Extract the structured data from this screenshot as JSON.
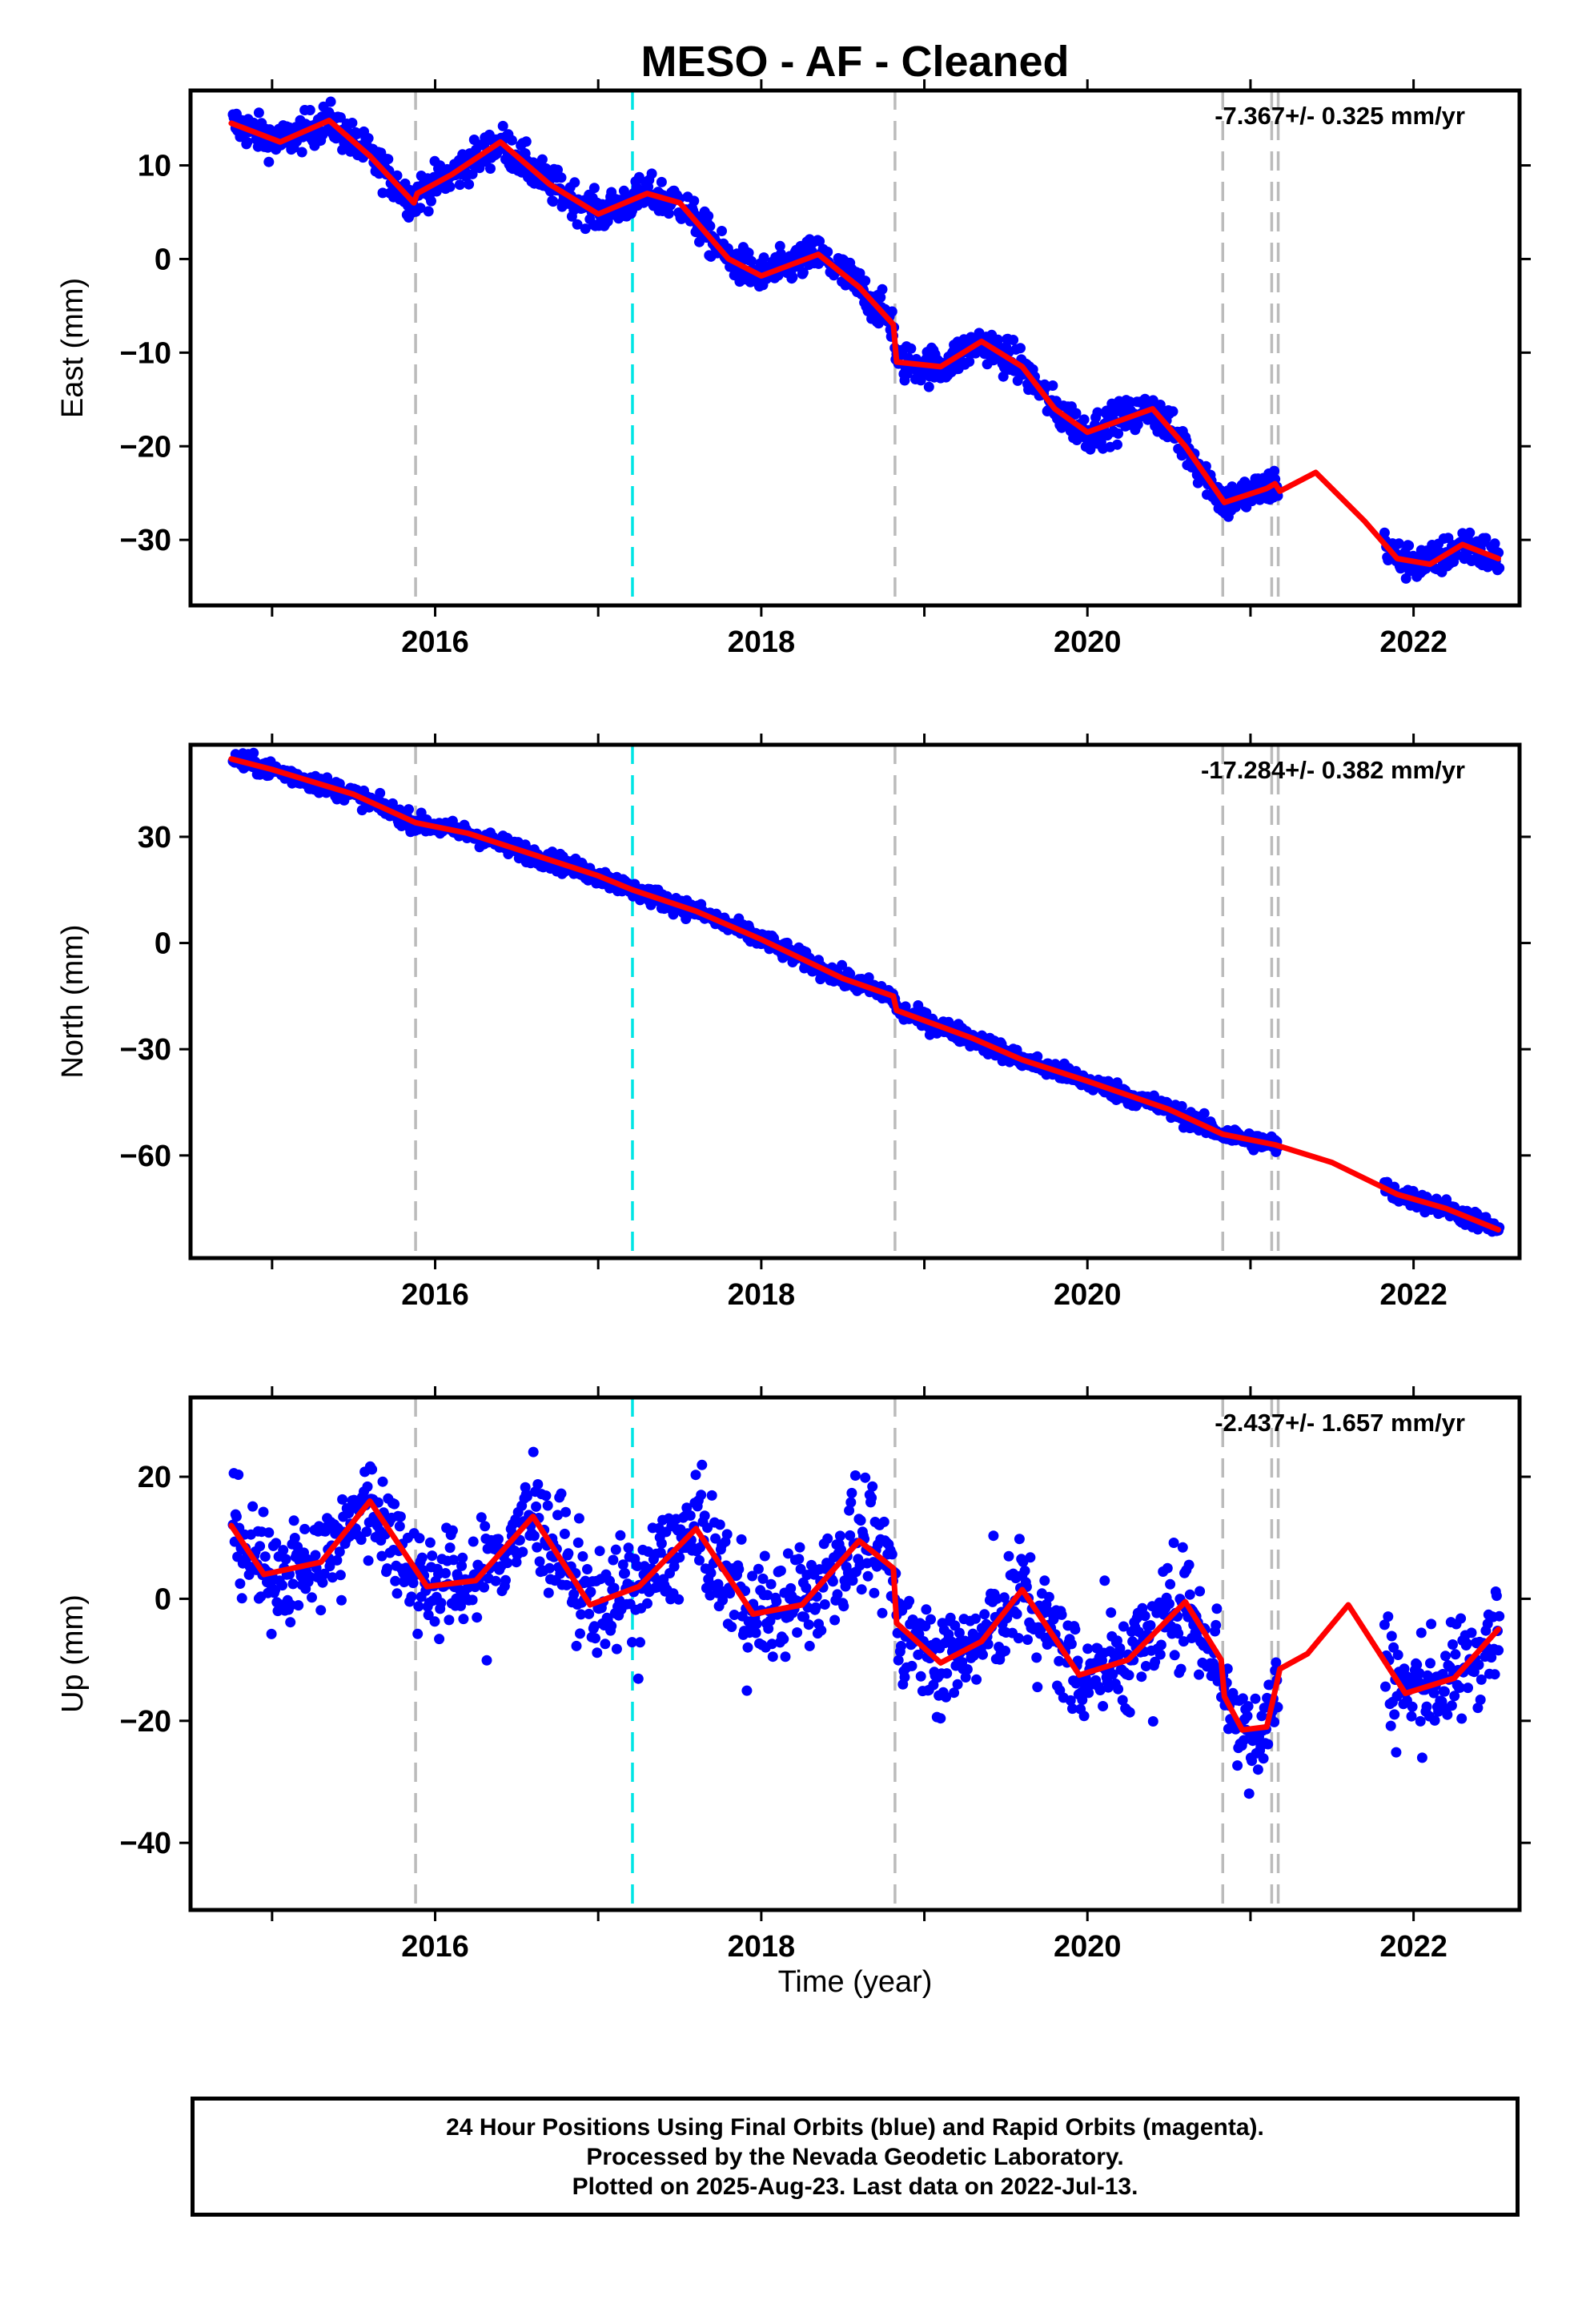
{
  "chart_data": {
    "title": "MESO  - AF - Cleaned",
    "xlabel": "Time (year)",
    "xlim": [
      2014.5,
      2022.65
    ],
    "x_ticks": [
      2016,
      2018,
      2020,
      2022
    ],
    "colors": {
      "observed": "#0000ff",
      "model": "#ff0000",
      "antenna_change": "#bbbbbb",
      "equipment_change": "#00e5e5"
    },
    "antenna_change_epochs": [
      2015.88,
      2018.82,
      2020.83,
      2021.13,
      2021.17
    ],
    "equipment_change_epochs": [
      2017.21
    ],
    "data_gaps": [
      [
        2021.17,
        2021.82
      ]
    ],
    "panels": [
      {
        "type": "scatter",
        "component": "east",
        "ylabel": "East (mm)",
        "velocity_label": "-7.367+/- 0.325 mm/yr",
        "ylim": [
          -37,
          18
        ],
        "y_ticks": [
          10,
          0,
          -10,
          -20,
          -30
        ],
        "y_tick_labels": [
          "10",
          "0",
          "−10",
          "−20",
          "−30"
        ],
        "model_curve": {
          "x": [
            2014.75,
            2015.05,
            2015.35,
            2015.6,
            2015.87,
            2015.89,
            2016.1,
            2016.4,
            2016.7,
            2017.0,
            2017.3,
            2017.5,
            2017.8,
            2018.0,
            2018.35,
            2018.6,
            2018.81,
            2018.83,
            2019.1,
            2019.35,
            2019.6,
            2019.8,
            2020.0,
            2020.4,
            2020.6,
            2020.82,
            2020.84,
            2021.1,
            2021.15,
            2021.18,
            2021.4,
            2021.7,
            2021.9,
            2022.1,
            2022.3,
            2022.52
          ],
          "y": [
            14.5,
            12.5,
            14.8,
            11.0,
            6.0,
            7.0,
            9.0,
            12.5,
            8.0,
            4.8,
            7.0,
            6.0,
            0.0,
            -1.8,
            0.5,
            -3.0,
            -7.0,
            -11.0,
            -11.5,
            -8.8,
            -11.5,
            -16.0,
            -18.5,
            -16.0,
            -20.0,
            -25.5,
            -26.0,
            -24.5,
            -24.0,
            -24.8,
            -22.8,
            -28.0,
            -32.0,
            -32.6,
            -30.5,
            -32.0
          ]
        }
      },
      {
        "type": "scatter",
        "component": "north",
        "ylabel": "North (mm)",
        "velocity_label": "-17.284+/- 0.382 mm/yr",
        "ylim": [
          -89,
          56
        ],
        "y_ticks": [
          30,
          0,
          -30,
          -60
        ],
        "y_tick_labels": [
          "30",
          "0",
          "−30",
          "−60"
        ],
        "model_curve": {
          "x": [
            2014.75,
            2015.0,
            2015.5,
            2015.88,
            2016.2,
            2016.6,
            2017.0,
            2017.21,
            2017.6,
            2018.0,
            2018.5,
            2018.81,
            2018.83,
            2019.3,
            2019.6,
            2020.0,
            2020.5,
            2020.83,
            2021.15,
            2021.5,
            2021.9,
            2022.2,
            2022.52
          ],
          "y": [
            52,
            49,
            42,
            34,
            31,
            25,
            19,
            15,
            9,
            1,
            -10,
            -15,
            -19,
            -27,
            -33,
            -39,
            -47,
            -54,
            -57,
            -62,
            -71,
            -75,
            -81
          ]
        }
      },
      {
        "type": "scatter",
        "component": "up",
        "ylabel": "Up (mm)",
        "velocity_label": "-2.437+/- 1.657 mm/yr",
        "ylim": [
          -51,
          33
        ],
        "y_ticks": [
          20,
          0,
          -20,
          -40
        ],
        "y_tick_labels": [
          "20",
          "0",
          "−20",
          "−40"
        ],
        "model_curve": {
          "x": [
            2014.75,
            2014.95,
            2015.3,
            2015.6,
            2015.95,
            2016.25,
            2016.6,
            2016.95,
            2017.25,
            2017.6,
            2017.95,
            2018.25,
            2018.6,
            2018.81,
            2018.83,
            2019.1,
            2019.35,
            2019.6,
            2019.95,
            2020.25,
            2020.6,
            2020.82,
            2020.84,
            2020.95,
            2021.1,
            2021.16,
            2021.18,
            2021.35,
            2021.6,
            2021.95,
            2022.25,
            2022.52
          ],
          "y": [
            12,
            4,
            6,
            16,
            2,
            3,
            13.5,
            -1,
            2,
            11.5,
            -2.5,
            -1,
            9.5,
            5,
            -4,
            -10.5,
            -7,
            1.5,
            -12.5,
            -10,
            -0.5,
            -10,
            -16,
            -21.5,
            -21,
            -14,
            -11.5,
            -9,
            -1,
            -15.5,
            -13,
            -5
          ]
        }
      }
    ]
  },
  "footer": {
    "line1": "24 Hour Positions Using Final Orbits (blue) and Rapid Orbits (magenta).",
    "line2": "Processed by the Nevada Geodetic Laboratory.",
    "line3": "Plotted on 2025-Aug-23. Last data on 2022-Jul-13."
  }
}
